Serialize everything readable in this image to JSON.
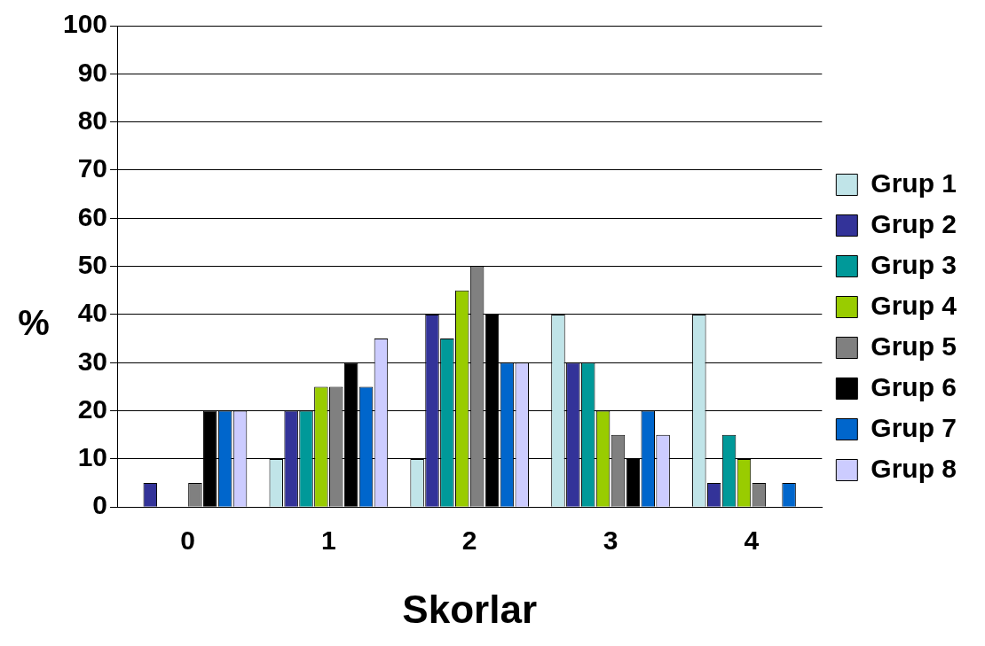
{
  "chart_data": {
    "type": "bar",
    "xlabel": "Skorlar",
    "ylabel": "%",
    "categories": [
      "0",
      "1",
      "2",
      "3",
      "4"
    ],
    "ylim": [
      0,
      100
    ],
    "yticks": [
      0,
      10,
      20,
      30,
      40,
      50,
      60,
      70,
      80,
      90,
      100
    ],
    "grid": "y",
    "legend": "right",
    "series": [
      {
        "name": "Grup 1",
        "color": "#c0e4e8",
        "values": [
          0,
          10,
          10,
          40,
          40
        ]
      },
      {
        "name": "Grup 2",
        "color": "#333399",
        "values": [
          5,
          20,
          40,
          30,
          5
        ]
      },
      {
        "name": "Grup 3",
        "color": "#009999",
        "values": [
          0,
          20,
          35,
          30,
          15
        ]
      },
      {
        "name": "Grup 4",
        "color": "#99cc00",
        "values": [
          0,
          25,
          45,
          20,
          10
        ]
      },
      {
        "name": "Grup 5",
        "color": "#808080",
        "values": [
          5,
          25,
          50,
          15,
          5
        ]
      },
      {
        "name": "Grup 6",
        "color": "#000000",
        "values": [
          20,
          30,
          40,
          10,
          0
        ]
      },
      {
        "name": "Grup 7",
        "color": "#0066cc",
        "values": [
          20,
          25,
          30,
          20,
          5
        ]
      },
      {
        "name": "Grup 8",
        "color": "#ccccff",
        "values": [
          20,
          35,
          30,
          15,
          0
        ]
      }
    ]
  }
}
